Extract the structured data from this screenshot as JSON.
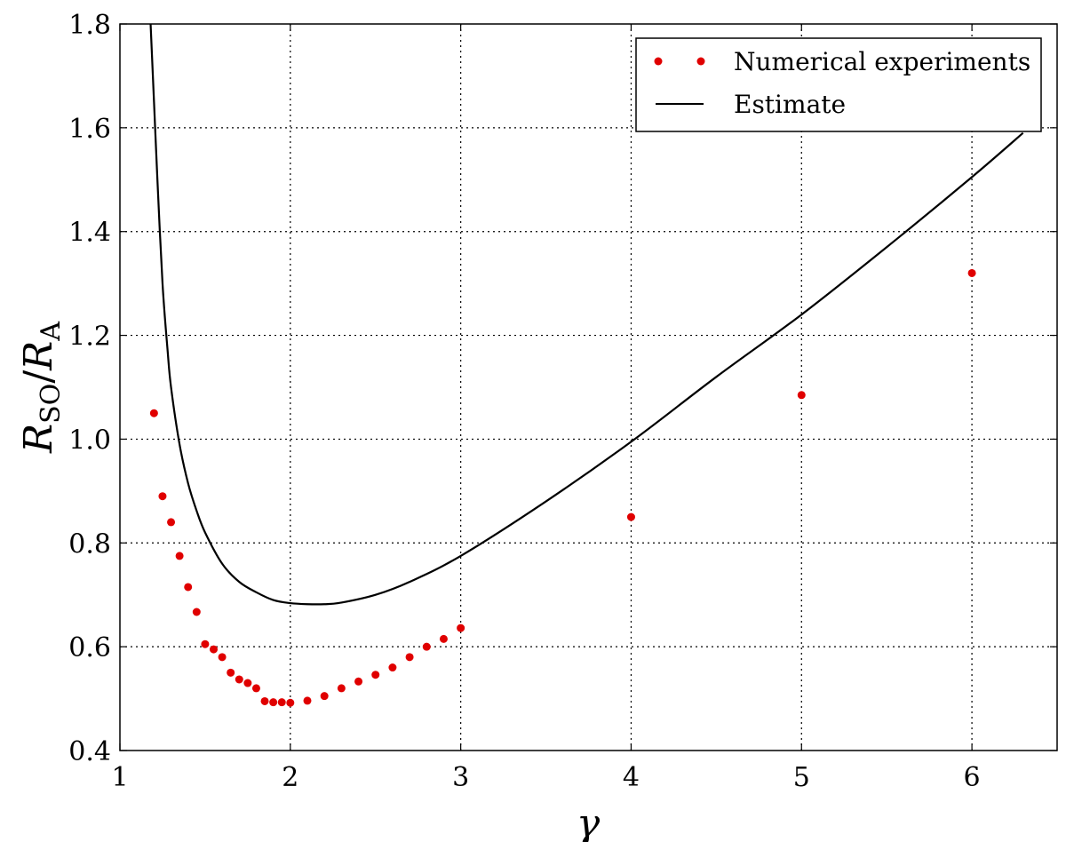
{
  "chart_data": {
    "type": "scatter",
    "xlabel": "γ",
    "ylabel": {
      "main": "R",
      "sub_num": "SO",
      "slash": "/",
      "main2": "R",
      "sub_den": "A"
    },
    "xlim": [
      1,
      6.5
    ],
    "ylim": [
      0.4,
      1.8
    ],
    "xticks": [
      1,
      2,
      3,
      4,
      5,
      6
    ],
    "yticks": [
      0.4,
      0.6,
      0.8,
      1.0,
      1.2,
      1.4,
      1.6,
      1.8
    ],
    "xtick_labels": [
      "1",
      "2",
      "3",
      "4",
      "5",
      "6"
    ],
    "ytick_labels": [
      "0.4",
      "0.6",
      "0.8",
      "1.0",
      "1.2",
      "1.4",
      "1.6",
      "1.8"
    ],
    "grid": true,
    "legend_position": "top-right",
    "series": [
      {
        "name": "Numerical experiments",
        "kind": "points",
        "color": "#e00000",
        "x": [
          1.2,
          1.25,
          1.3,
          1.35,
          1.4,
          1.45,
          1.5,
          1.55,
          1.6,
          1.65,
          1.7,
          1.75,
          1.8,
          1.85,
          1.9,
          1.95,
          2.0,
          2.1,
          2.2,
          2.3,
          2.4,
          2.5,
          2.6,
          2.7,
          2.8,
          2.9,
          3.0,
          4.0,
          5.0,
          6.0
        ],
        "y": [
          1.05,
          0.89,
          0.84,
          0.775,
          0.715,
          0.667,
          0.605,
          0.595,
          0.58,
          0.55,
          0.537,
          0.53,
          0.52,
          0.495,
          0.493,
          0.493,
          0.492,
          0.496,
          0.505,
          0.52,
          0.533,
          0.546,
          0.56,
          0.58,
          0.6,
          0.615,
          0.636,
          0.85,
          1.085,
          1.32
        ]
      },
      {
        "name": "Estimate",
        "kind": "line",
        "color": "#000000",
        "x": [
          1.18,
          1.2,
          1.22,
          1.25,
          1.28,
          1.3,
          1.35,
          1.4,
          1.45,
          1.5,
          1.6,
          1.7,
          1.8,
          1.9,
          2.0,
          2.1,
          2.2,
          2.3,
          2.5,
          2.7,
          3.0,
          3.5,
          4.0,
          4.5,
          5.0,
          5.5,
          6.0,
          6.3
        ],
        "y": [
          1.8,
          1.65,
          1.5,
          1.3,
          1.17,
          1.1,
          0.99,
          0.915,
          0.862,
          0.82,
          0.76,
          0.725,
          0.705,
          0.69,
          0.684,
          0.682,
          0.682,
          0.685,
          0.7,
          0.725,
          0.775,
          0.88,
          0.995,
          1.12,
          1.24,
          1.37,
          1.505,
          1.59
        ]
      }
    ]
  }
}
